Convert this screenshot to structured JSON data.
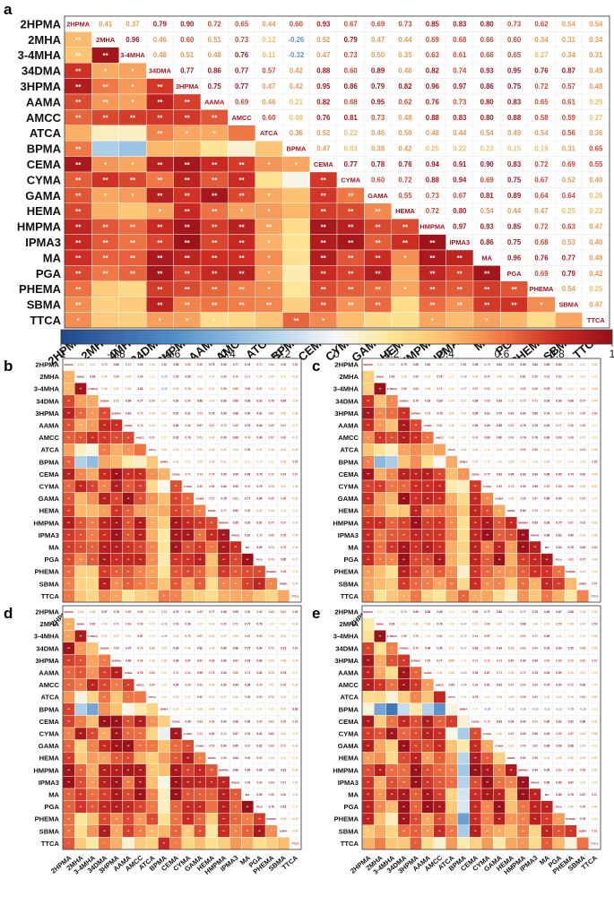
{
  "panel_letters": {
    "a": "a",
    "b": "b",
    "c": "c",
    "d": "d",
    "e": "e"
  },
  "chart_data": [
    {
      "type": "heatmap",
      "panel": "a",
      "labels": [
        "2HPMA",
        "2MHA",
        "3-4MHA",
        "34DMA",
        "3HPMA",
        "AAMA",
        "AMCC",
        "ATCA",
        "BPMA",
        "CEMA",
        "CYMA",
        "GAMA",
        "HEMA",
        "HMPMA",
        "IPMA3",
        "MA",
        "PGA",
        "PHEMA",
        "SBMA",
        "TTCA"
      ],
      "upper_values": [
        [
          null,
          0.41,
          0.37,
          0.79,
          0.9,
          0.72,
          0.65,
          0.44,
          0.6,
          0.93,
          0.67,
          0.69,
          0.73,
          0.85,
          0.83,
          0.8,
          0.73,
          0.62,
          0.54,
          0.54
        ],
        [
          null,
          null,
          0.96,
          0.46,
          0.6,
          0.51,
          0.73,
          0.12,
          -0.26,
          0.52,
          0.79,
          0.47,
          0.44,
          0.69,
          0.68,
          0.66,
          0.6,
          0.34,
          0.31,
          0.34
        ],
        [
          null,
          null,
          null,
          0.48,
          0.51,
          0.48,
          0.76,
          0.11,
          -0.32,
          0.47,
          0.73,
          0.5,
          0.35,
          0.63,
          0.61,
          0.66,
          0.65,
          0.27,
          0.34,
          0.31
        ],
        [
          null,
          null,
          null,
          null,
          0.77,
          0.86,
          0.77,
          0.57,
          0.42,
          0.88,
          0.6,
          0.89,
          0.48,
          0.82,
          0.74,
          0.93,
          0.95,
          0.76,
          0.87,
          0.49
        ],
        [
          null,
          null,
          null,
          null,
          null,
          0.75,
          0.77,
          0.47,
          0.42,
          0.95,
          0.86,
          0.79,
          0.82,
          0.96,
          0.97,
          0.86,
          0.75,
          0.72,
          0.57,
          0.48
        ],
        [
          null,
          null,
          null,
          null,
          null,
          null,
          0.69,
          0.46,
          0.21,
          0.82,
          0.68,
          0.95,
          0.62,
          0.76,
          0.73,
          0.8,
          0.83,
          0.65,
          0.61,
          0.25
        ],
        [
          null,
          null,
          null,
          null,
          null,
          null,
          null,
          0.6,
          0.08,
          0.76,
          0.81,
          0.73,
          0.48,
          0.88,
          0.83,
          0.8,
          0.88,
          0.58,
          0.59,
          0.27
        ],
        [
          null,
          null,
          null,
          null,
          null,
          null,
          null,
          null,
          0.36,
          0.52,
          0.22,
          0.46,
          0.5,
          0.48,
          0.44,
          0.54,
          0.49,
          0.54,
          0.56,
          0.36
        ],
        [
          null,
          null,
          null,
          null,
          null,
          null,
          null,
          null,
          null,
          0.47,
          0.03,
          0.38,
          0.42,
          0.25,
          0.22,
          0.23,
          0.15,
          0.19,
          0.31,
          0.65
        ],
        [
          null,
          null,
          null,
          null,
          null,
          null,
          null,
          null,
          null,
          null,
          0.77,
          0.78,
          0.76,
          0.94,
          0.91,
          0.9,
          0.83,
          0.72,
          0.69,
          0.55
        ],
        [
          null,
          null,
          null,
          null,
          null,
          null,
          null,
          null,
          null,
          null,
          null,
          0.6,
          0.72,
          0.88,
          0.94,
          0.69,
          0.75,
          0.67,
          0.52,
          0.4
        ],
        [
          null,
          null,
          null,
          null,
          null,
          null,
          null,
          null,
          null,
          null,
          null,
          null,
          0.55,
          0.73,
          0.67,
          0.81,
          0.89,
          0.64,
          0.64,
          0.26
        ],
        [
          null,
          null,
          null,
          null,
          null,
          null,
          null,
          null,
          null,
          null,
          null,
          null,
          null,
          0.72,
          0.8,
          0.54,
          0.44,
          0.47,
          0.25,
          0.23
        ],
        [
          null,
          null,
          null,
          null,
          null,
          null,
          null,
          null,
          null,
          null,
          null,
          null,
          null,
          null,
          0.97,
          0.93,
          0.85,
          0.72,
          0.63,
          0.47
        ],
        [
          null,
          null,
          null,
          null,
          null,
          null,
          null,
          null,
          null,
          null,
          null,
          null,
          null,
          null,
          null,
          0.86,
          0.75,
          0.68,
          0.53,
          0.4
        ],
        [
          null,
          null,
          null,
          null,
          null,
          null,
          null,
          null,
          null,
          null,
          null,
          null,
          null,
          null,
          null,
          null,
          0.96,
          0.76,
          0.77,
          0.48
        ],
        [
          null,
          null,
          null,
          null,
          null,
          null,
          null,
          null,
          null,
          null,
          null,
          null,
          null,
          null,
          null,
          null,
          null,
          0.69,
          0.79,
          0.42
        ],
        [
          null,
          null,
          null,
          null,
          null,
          null,
          null,
          null,
          null,
          null,
          null,
          null,
          null,
          null,
          null,
          null,
          null,
          null,
          0.54,
          0.25
        ],
        [
          null,
          null,
          null,
          null,
          null,
          null,
          null,
          null,
          null,
          null,
          null,
          null,
          null,
          null,
          null,
          null,
          null,
          null,
          null,
          0.47
        ],
        [
          null,
          null,
          null,
          null,
          null,
          null,
          null,
          null,
          null,
          null,
          null,
          null,
          null,
          null,
          null,
          null,
          null,
          null,
          null,
          null
        ]
      ],
      "lower_stars": [
        [],
        [
          "**"
        ],
        [
          "**",
          "**"
        ],
        [
          "**",
          "*",
          "*"
        ],
        [
          "**",
          "**",
          "*",
          "**"
        ],
        [
          "**",
          "**",
          "*",
          "**",
          "**"
        ],
        [
          "**",
          "**",
          "**",
          "**",
          "**",
          "**"
        ],
        [
          "",
          "",
          "",
          "**",
          "*",
          "*",
          ""
        ],
        [
          "**",
          "",
          "",
          "",
          "",
          "",
          "",
          ""
        ],
        [
          "**",
          "*",
          "*",
          "**",
          "**",
          "**",
          "**",
          "*",
          "*"
        ],
        [
          "**",
          "**",
          "**",
          "**",
          "**",
          "**",
          "**",
          "",
          "",
          "**"
        ],
        [
          "**",
          "*",
          "*",
          "**",
          "**",
          "**",
          "**",
          "*",
          "",
          "**",
          "**"
        ],
        [
          "**",
          "",
          "",
          "*",
          "**",
          "**",
          "*",
          "*",
          "",
          "**",
          "**",
          "**"
        ],
        [
          "**",
          "**",
          "**",
          "**",
          "**",
          "**",
          "**",
          "**",
          "",
          "**",
          "**",
          "**",
          "**"
        ],
        [
          "**",
          "**",
          "**",
          "**",
          "**",
          "**",
          "**",
          "*",
          "",
          "**",
          "**",
          "**",
          "**",
          "**"
        ],
        [
          "**",
          "**",
          "**",
          "**",
          "**",
          "**",
          "**",
          "*",
          "",
          "**",
          "**",
          "**",
          "*",
          "**",
          "**"
        ],
        [
          "**",
          "**",
          "**",
          "**",
          "**",
          "**",
          "**",
          "*",
          "",
          "**",
          "**",
          "**",
          "",
          "**",
          "**",
          "**"
        ],
        [
          "**",
          "",
          "",
          "**",
          "**",
          "**",
          "**",
          "*",
          "",
          "**",
          "**",
          "**",
          "*",
          "**",
          "**",
          "**",
          "**"
        ],
        [
          "**",
          "",
          "",
          "**",
          "**",
          "**",
          "**",
          "**",
          "",
          "**",
          "**",
          "**",
          "",
          "**",
          "**",
          "**",
          "**",
          "*"
        ],
        [
          "*",
          "",
          "",
          "*",
          "*",
          "*",
          "",
          "",
          "**",
          "*",
          "",
          "",
          "",
          "*",
          "",
          "*",
          "",
          "",
          ""
        ]
      ],
      "colorbar": {
        "range": [
          -1,
          1
        ],
        "ticks": [
          "-1",
          "-0.8",
          "-0.6",
          "-0.4",
          "-0.2",
          "0",
          "0.2",
          "0.4",
          "0.6",
          "0.8",
          "1"
        ]
      }
    },
    {
      "type": "heatmap",
      "panel": "b",
      "labels_ref": "a",
      "variant": 1
    },
    {
      "type": "heatmap",
      "panel": "c",
      "labels_ref": "a",
      "variant": 2
    },
    {
      "type": "heatmap",
      "panel": "d",
      "labels_ref": "a",
      "variant": 3
    },
    {
      "type": "heatmap",
      "panel": "e",
      "labels_ref": "a",
      "variant": 4
    }
  ]
}
